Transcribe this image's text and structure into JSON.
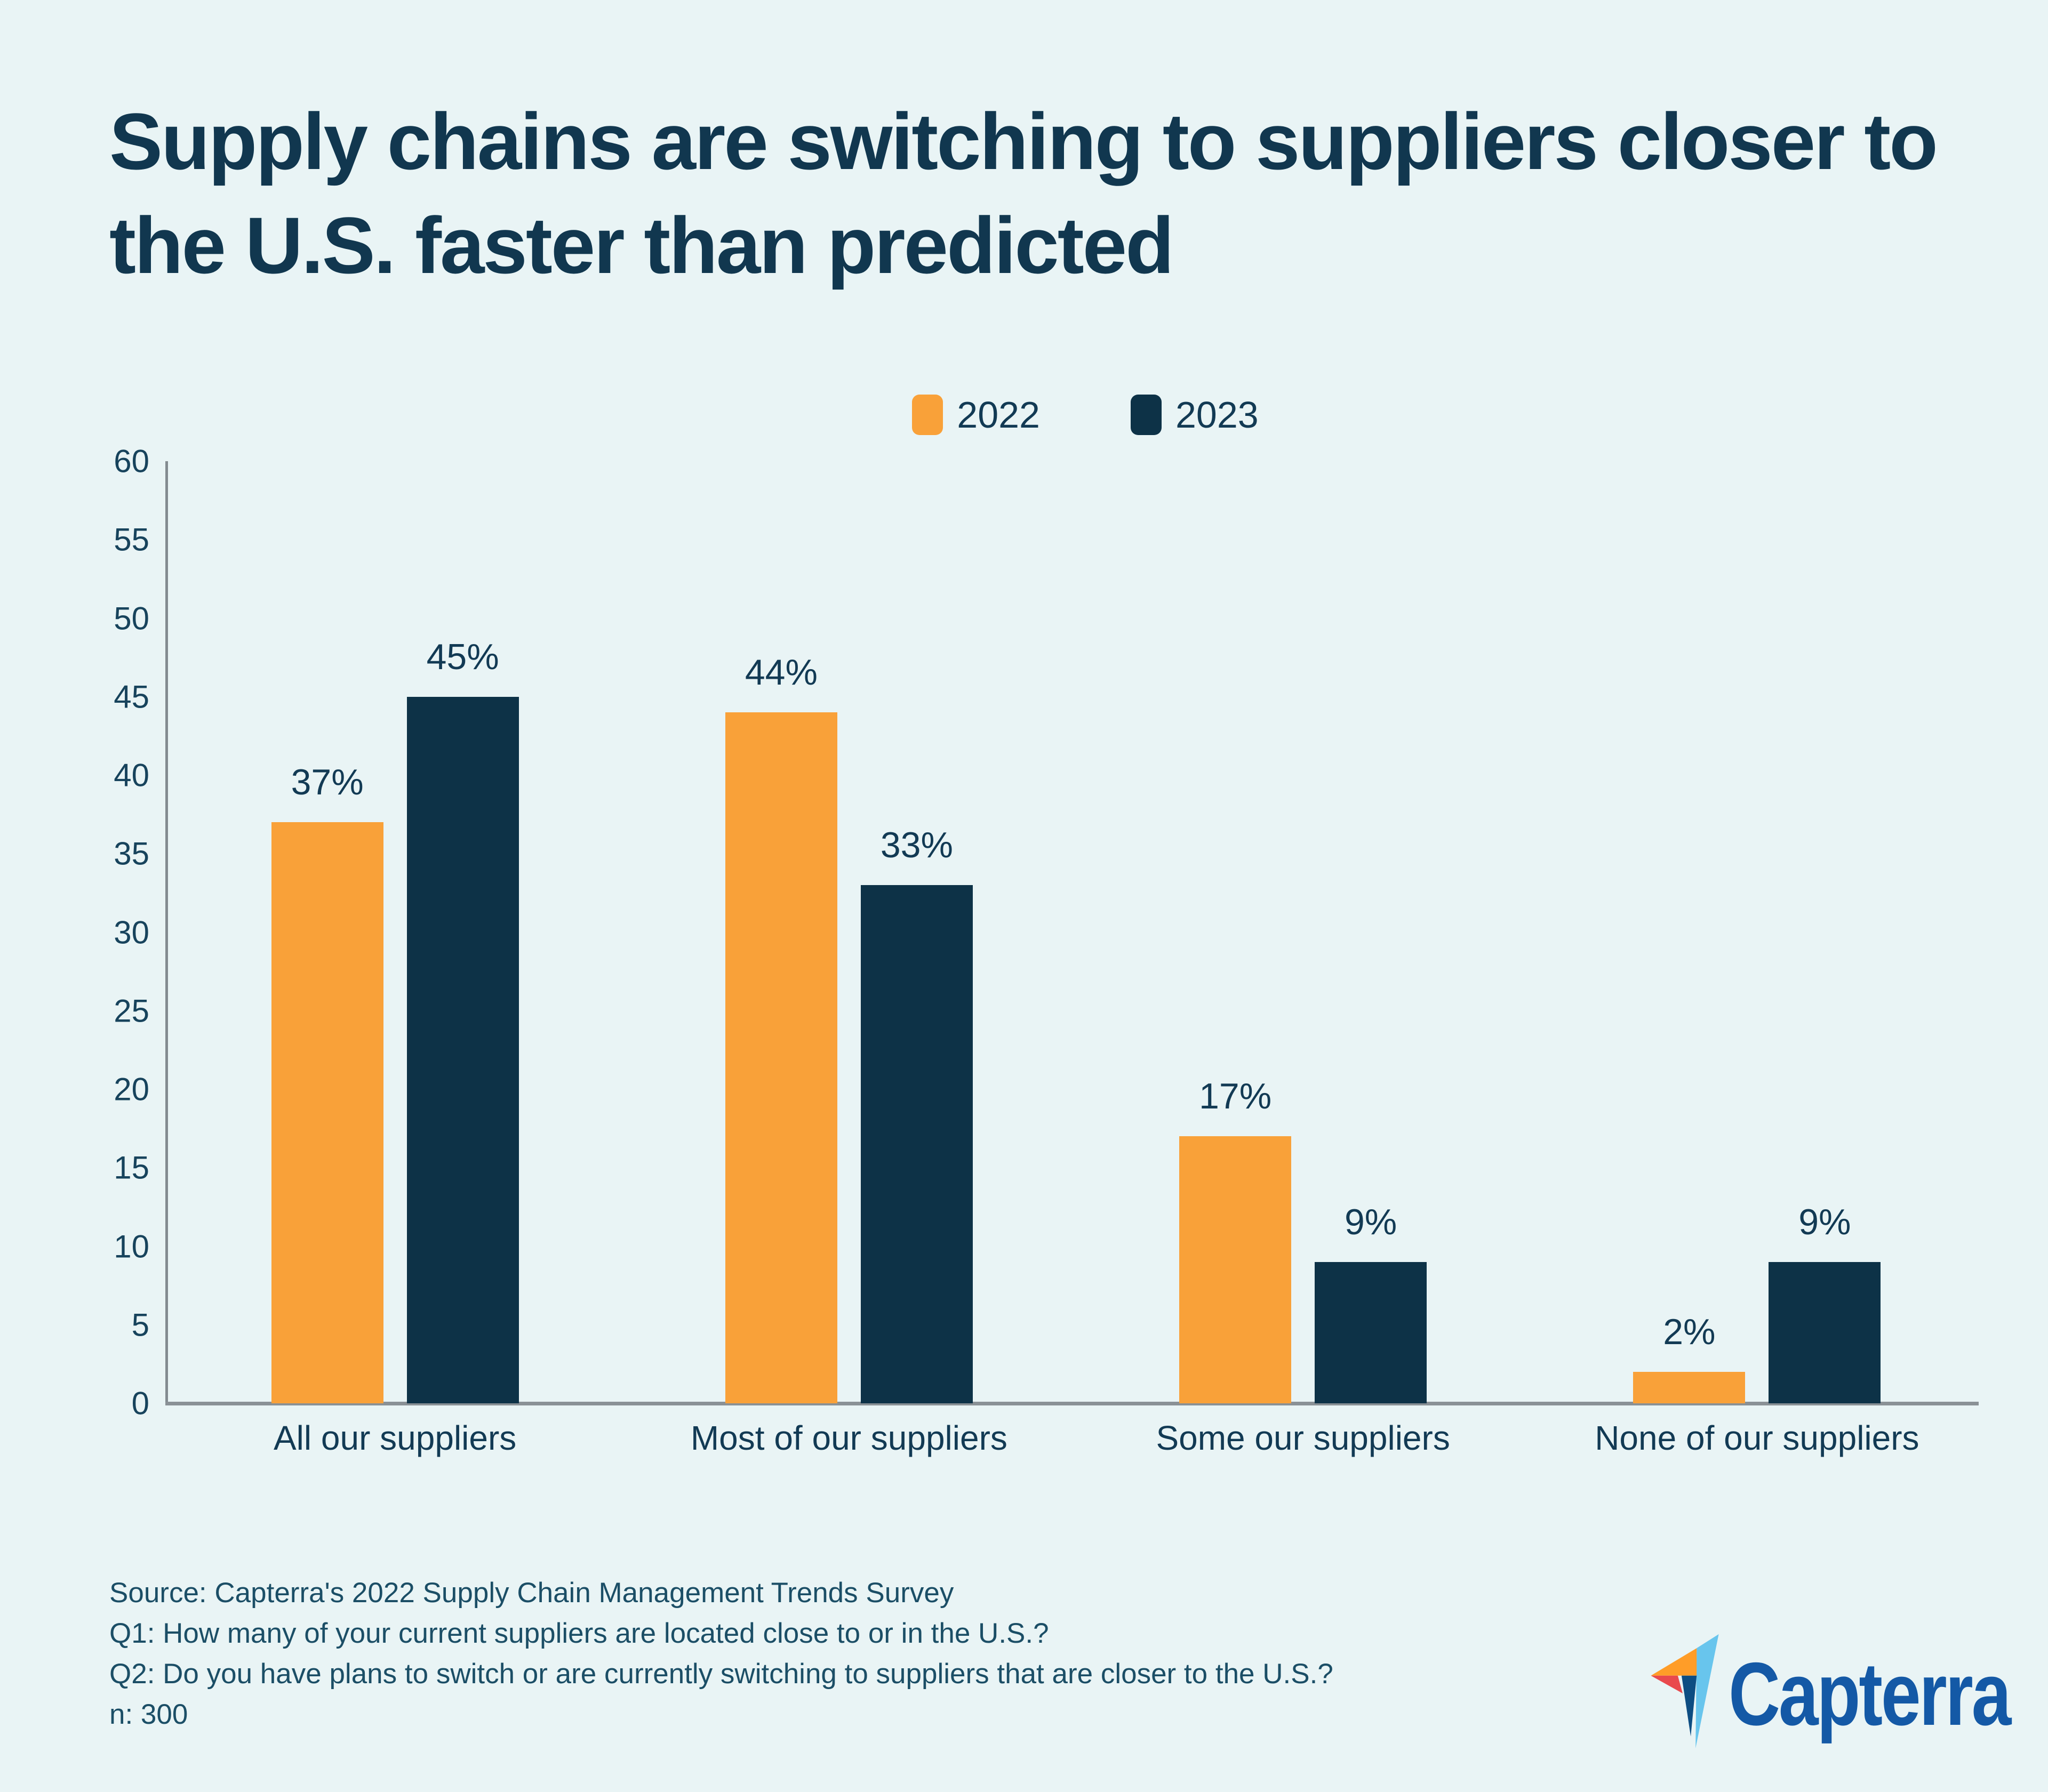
{
  "page": {
    "background": "#E9F4F5"
  },
  "chart_data": {
    "type": "bar",
    "title": "Supply chains are switching to suppliers closer to the U.S. faster than predicted",
    "categories": [
      "All our suppliers",
      "Most of our suppliers",
      "Some our suppliers",
      "None of our suppliers"
    ],
    "series": [
      {
        "name": "2022",
        "color": "#F9A139",
        "values": [
          37,
          44,
          17,
          2
        ]
      },
      {
        "name": "2023",
        "color": "#0D3247",
        "values": [
          45,
          33,
          9,
          9
        ]
      }
    ],
    "value_labels": [
      [
        "37%",
        "44%",
        "17%",
        "2%"
      ],
      [
        "45%",
        "33%",
        "9%",
        "9%"
      ]
    ],
    "value_suffix": "%",
    "ylim": [
      0,
      60
    ],
    "y_ticks": [
      0,
      5,
      10,
      15,
      20,
      25,
      30,
      35,
      40,
      45,
      50,
      55,
      60
    ],
    "grid": false,
    "legend_position": "top-center",
    "text_color": "#123A54",
    "tick_color": "#17435C",
    "axis_color": "#8A9196"
  },
  "footer": {
    "lines": [
      "Source: Capterra's 2022 Supply Chain Management Trends Survey",
      "Q1: How many of your current suppliers are located close to or in the U.S.?",
      "Q2: Do you have plans to switch or are currently switching to suppliers that are closer to the U.S.?",
      "n: 300"
    ],
    "logo_text": "Capterra",
    "logo_colors": {
      "orange": "#FF9D28",
      "red": "#E9494D",
      "light_blue": "#68C5ED",
      "navy": "#0D4D82",
      "wordmark": "#1459A6"
    }
  }
}
